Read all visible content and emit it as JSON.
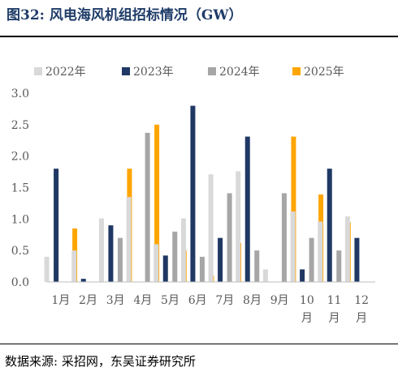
{
  "header": {
    "title": "图32:  风电海风机组招标情况（GW）"
  },
  "footer": {
    "source": "数据来源:  采招网，东吴证券研究所"
  },
  "chart_data": {
    "type": "bar",
    "categories": [
      "1月",
      "2月",
      "3月",
      "4月",
      "5月",
      "6月",
      "7月",
      "8月",
      "9月",
      "10月",
      "11月",
      "12月"
    ],
    "series": [
      {
        "name": "2022年",
        "color": "#d9d9d9",
        "values": [
          0.4,
          0.5,
          1.01,
          1.35,
          0.6,
          1.01,
          1.71,
          1.76,
          0.2,
          1.12,
          0.96,
          1.04
        ]
      },
      {
        "name": "2023年",
        "color": "#1f3864",
        "values": [
          1.8,
          0.05,
          0.9,
          null,
          0.42,
          2.8,
          0.7,
          2.31,
          null,
          0.2,
          1.8,
          0.7
        ]
      },
      {
        "name": "2024年",
        "color": "#a6a6a6",
        "values": [
          null,
          null,
          0.7,
          2.37,
          0.8,
          0.4,
          1.41,
          0.5,
          1.41,
          0.7,
          0.5,
          null
        ]
      },
      {
        "name": "2025年",
        "color": "#ffa500",
        "values": [
          0.85,
          null,
          1.8,
          2.5,
          0.5,
          0.1,
          0.62,
          null,
          2.31,
          1.39,
          0.95,
          null
        ]
      }
    ],
    "y_ticks": [
      "0.0",
      "0.5",
      "1.0",
      "1.5",
      "2.0",
      "2.5",
      "3.0"
    ],
    "ylim": [
      0,
      3.0
    ],
    "legend_position": "top",
    "grid": false
  }
}
